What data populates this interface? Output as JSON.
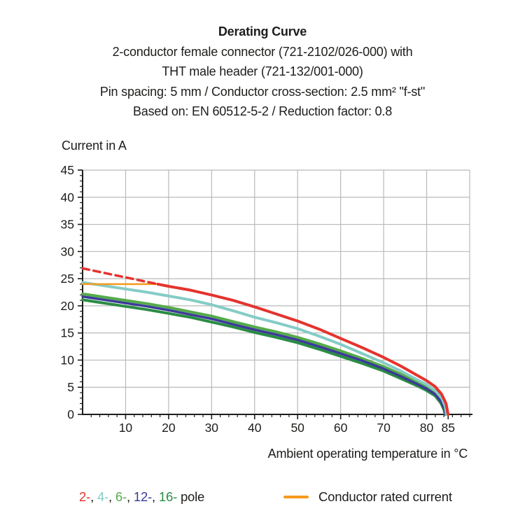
{
  "title": {
    "line1": "Derating Curve",
    "line2": "2-conductor female connector (721-2102/026-000) with",
    "line3": "THT male header (721-132/001-000)",
    "line4": "Pin spacing: 5 mm / Conductor cross-section: 2.5 mm² \"f-st\"",
    "line5": "Based on: EN 60512-5-2 / Reduction factor: 0.8"
  },
  "colors": {
    "text": "#1d1d1b",
    "axis": "#1d1d1b",
    "grid": "#b9b9b9",
    "red_2pole": "#e5332d",
    "cyan_4pole": "#85ccc6",
    "green_6pole": "#55ab49",
    "indigo_12pole": "#3b3a99",
    "darkgreen_16pole": "#2a8c43",
    "orange_rated": "#f59b1e"
  },
  "legend": {
    "pole_items": [
      {
        "label": "2-",
        "color": "#e5332d"
      },
      {
        "label": "4-",
        "color": "#85ccc6"
      },
      {
        "label": "6-",
        "color": "#55ab49"
      },
      {
        "label": "12-",
        "color": "#3b3a99"
      },
      {
        "label": "16-",
        "color": "#2a8c43"
      }
    ],
    "separator": ", ",
    "pole_suffix": " pole",
    "conductor_rated_current": "Conductor rated current"
  },
  "chart_data": {
    "type": "line",
    "title": "Derating Curve",
    "xlabel": "Ambient operating temperature in °C",
    "ylabel": "Current in A",
    "xlim": [
      0,
      90
    ],
    "ylim": [
      0,
      45
    ],
    "grid": true,
    "x_major_ticks": [
      10,
      20,
      30,
      40,
      50,
      60,
      70,
      80,
      85
    ],
    "x_minor_step": 2,
    "y_major_ticks": [
      0,
      5,
      10,
      15,
      20,
      25,
      30,
      35,
      40,
      45
    ],
    "y_minor_step": 1,
    "legend_position": "bottom",
    "series": [
      {
        "name": "6-pole",
        "color": "#55ab49",
        "style": "solid",
        "width": 4,
        "points": [
          [
            0,
            22.2
          ],
          [
            5,
            21.6
          ],
          [
            10,
            21.0
          ],
          [
            15,
            20.4
          ],
          [
            20,
            19.7
          ],
          [
            25,
            18.9
          ],
          [
            30,
            18.1
          ],
          [
            35,
            17.1
          ],
          [
            40,
            16.1
          ],
          [
            45,
            15.2
          ],
          [
            50,
            14.2
          ],
          [
            55,
            13.0
          ],
          [
            60,
            11.7
          ],
          [
            65,
            10.3
          ],
          [
            70,
            8.8
          ],
          [
            74,
            7.4
          ],
          [
            78,
            5.8
          ],
          [
            80,
            5.0
          ],
          [
            82,
            4.0
          ],
          [
            83.5,
            2.6
          ],
          [
            84.2,
            1.2
          ],
          [
            84.5,
            0
          ]
        ]
      },
      {
        "name": "16-pole",
        "color": "#2a8c43",
        "style": "solid",
        "width": 4,
        "points": [
          [
            0,
            21.1
          ],
          [
            5,
            20.5
          ],
          [
            10,
            19.9
          ],
          [
            15,
            19.3
          ],
          [
            20,
            18.6
          ],
          [
            25,
            17.9
          ],
          [
            30,
            17.0
          ],
          [
            35,
            16.1
          ],
          [
            40,
            15.1
          ],
          [
            45,
            14.2
          ],
          [
            50,
            13.2
          ],
          [
            55,
            12.0
          ],
          [
            60,
            10.7
          ],
          [
            65,
            9.4
          ],
          [
            70,
            8.0
          ],
          [
            74,
            6.6
          ],
          [
            78,
            5.2
          ],
          [
            80,
            4.4
          ],
          [
            82,
            3.4
          ],
          [
            83.3,
            2.1
          ],
          [
            84,
            0.9
          ],
          [
            84.3,
            0
          ]
        ]
      },
      {
        "name": "12-pole",
        "color": "#3b3a99",
        "style": "solid",
        "width": 3.5,
        "points": [
          [
            0,
            21.7
          ],
          [
            5,
            21.1
          ],
          [
            10,
            20.5
          ],
          [
            15,
            19.9
          ],
          [
            20,
            19.2
          ],
          [
            25,
            18.4
          ],
          [
            30,
            17.6
          ],
          [
            35,
            16.6
          ],
          [
            40,
            15.6
          ],
          [
            45,
            14.7
          ],
          [
            50,
            13.7
          ],
          [
            55,
            12.5
          ],
          [
            60,
            11.2
          ],
          [
            65,
            9.9
          ],
          [
            70,
            8.4
          ],
          [
            74,
            7.0
          ],
          [
            78,
            5.5
          ],
          [
            80,
            4.7
          ],
          [
            82,
            3.7
          ],
          [
            83.4,
            2.3
          ],
          [
            84.1,
            1.0
          ],
          [
            84.4,
            0
          ]
        ]
      },
      {
        "name": "4-pole",
        "color": "#85ccc6",
        "style": "solid",
        "width": 4,
        "points": [
          [
            0,
            24.3
          ],
          [
            5,
            23.7
          ],
          [
            10,
            23.1
          ],
          [
            15,
            22.5
          ],
          [
            20,
            21.8
          ],
          [
            25,
            21.1
          ],
          [
            30,
            20.2
          ],
          [
            35,
            19.1
          ],
          [
            40,
            17.9
          ],
          [
            45,
            16.9
          ],
          [
            50,
            15.8
          ],
          [
            55,
            14.4
          ],
          [
            60,
            12.9
          ],
          [
            65,
            11.2
          ],
          [
            70,
            9.5
          ],
          [
            74,
            8.0
          ],
          [
            78,
            6.3
          ],
          [
            80,
            5.5
          ],
          [
            82,
            4.4
          ],
          [
            83.5,
            3.0
          ],
          [
            84.3,
            1.5
          ],
          [
            84.6,
            0
          ]
        ]
      },
      {
        "name": "Conductor rated current",
        "color": "#f59b1e",
        "style": "solid",
        "width": 2.5,
        "points": [
          [
            0,
            24
          ],
          [
            17.5,
            24
          ]
        ]
      },
      {
        "name": "2-pole (pre-section, dashed)",
        "color": "#e5332d",
        "style": "dashed",
        "width": 3.5,
        "points": [
          [
            0,
            26.9
          ],
          [
            17.5,
            24.0
          ]
        ]
      },
      {
        "name": "2-pole",
        "color": "#e5332d",
        "style": "solid",
        "width": 4,
        "points": [
          [
            17.5,
            24.0
          ],
          [
            20,
            23.6
          ],
          [
            25,
            22.9
          ],
          [
            30,
            22.0
          ],
          [
            35,
            21.0
          ],
          [
            40,
            19.8
          ],
          [
            45,
            18.5
          ],
          [
            50,
            17.2
          ],
          [
            55,
            15.7
          ],
          [
            60,
            14.0
          ],
          [
            65,
            12.3
          ],
          [
            70,
            10.5
          ],
          [
            74,
            8.9
          ],
          [
            78,
            7.1
          ],
          [
            80,
            6.2
          ],
          [
            82,
            5.1
          ],
          [
            83.5,
            3.7
          ],
          [
            84.5,
            2.0
          ],
          [
            85,
            0
          ]
        ]
      }
    ]
  }
}
